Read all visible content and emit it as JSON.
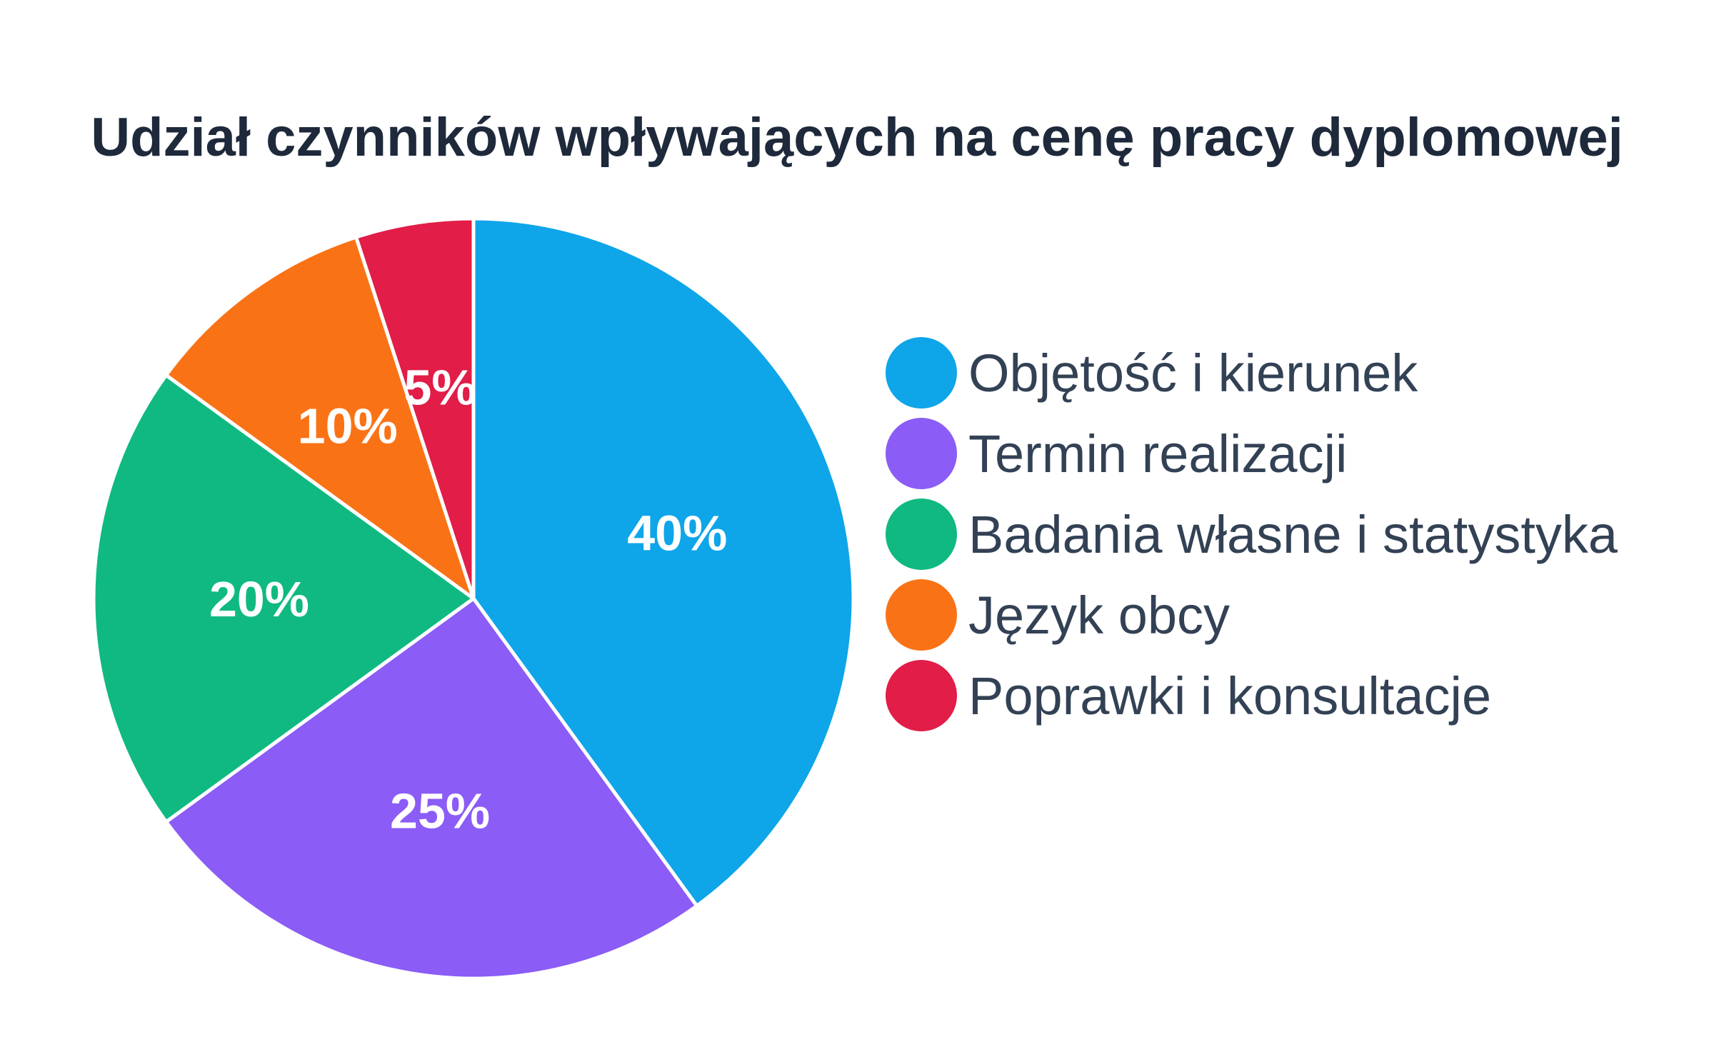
{
  "chart_data": {
    "type": "pie",
    "title": "Udział czynników wpływających na cenę pracy dyplomowej",
    "categories": [
      "Objętość i kierunek",
      "Termin realizacji",
      "Badania własne i statystyka",
      "Język obcy",
      "Poprawki i konsultacje"
    ],
    "values": [
      40,
      25,
      20,
      10,
      5
    ],
    "data_labels": [
      "40%",
      "25%",
      "20%",
      "10%",
      "5%"
    ],
    "colors": [
      "#0ea5e9",
      "#8b5cf6",
      "#10b981",
      "#f97316",
      "#e11d48"
    ],
    "legend": "right",
    "start_angle": "top, clockwise"
  }
}
